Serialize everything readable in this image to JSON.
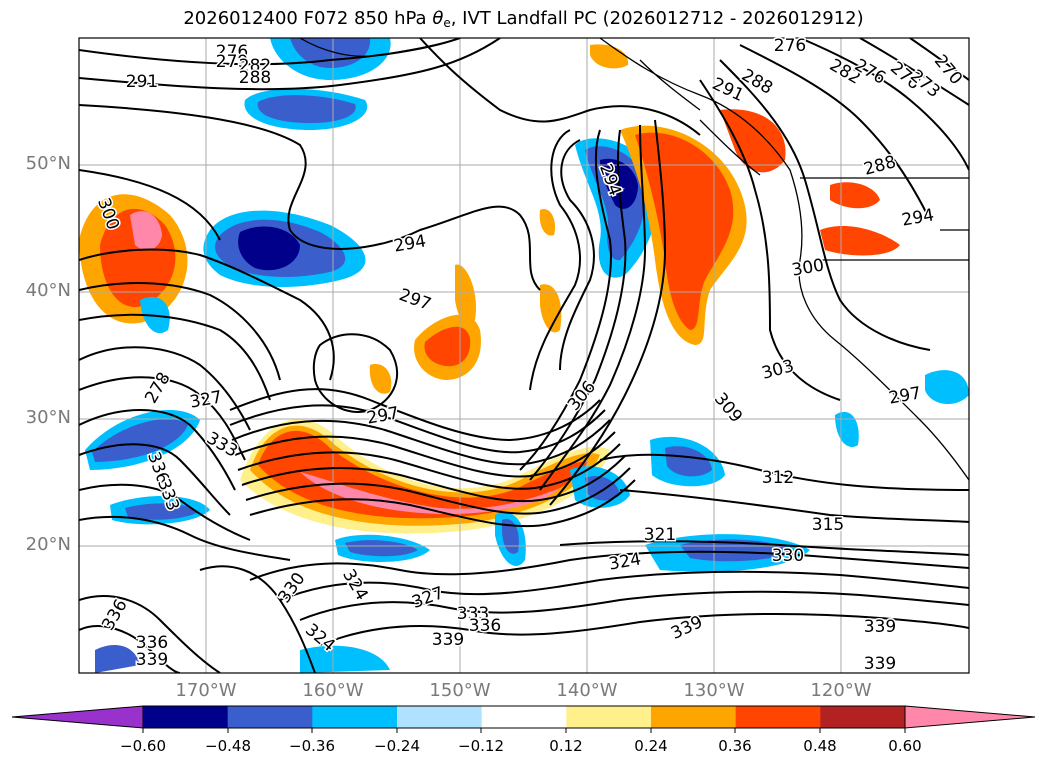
{
  "title": {
    "prefix": "2026012400 F072 850 hPa ",
    "theta_symbol": "θ",
    "theta_sub": "e",
    "suffix": ", IVT Landfall PC (2026012712 - 2026012912)"
  },
  "map": {
    "latitude_labels": [
      "50°N",
      "40°N",
      "30°N",
      "20°N"
    ],
    "longitude_labels": [
      "170°W",
      "160°W",
      "150°W",
      "140°W",
      "130°W",
      "120°W"
    ],
    "contour_labels": [
      "276",
      "279",
      "282",
      "288",
      "291",
      "276",
      "288",
      "282",
      "276",
      "276",
      "273",
      "270",
      "291",
      "288",
      "294",
      "294",
      "300",
      "294",
      "300",
      "297",
      "278",
      "327",
      "333",
      "336",
      "333",
      "297",
      "306",
      "309",
      "303",
      "297",
      "312",
      "315",
      "321",
      "324",
      "330",
      "330",
      "324",
      "327",
      "333",
      "336",
      "339",
      "339",
      "336",
      "336",
      "339",
      "324",
      "339",
      "339"
    ]
  },
  "colorbar": {
    "colors": [
      "#9932cc",
      "#00008b",
      "#3a5fcd",
      "#00bfff",
      "#b0e2ff",
      "#ffffff",
      "#fff08c",
      "#ffa500",
      "#ff4500",
      "#b22222",
      "#ff88aa"
    ],
    "tick_labels": [
      "−0.60",
      "−0.48",
      "−0.36",
      "−0.24",
      "−0.12",
      "0.12",
      "0.24",
      "0.36",
      "0.48",
      "0.60"
    ]
  }
}
